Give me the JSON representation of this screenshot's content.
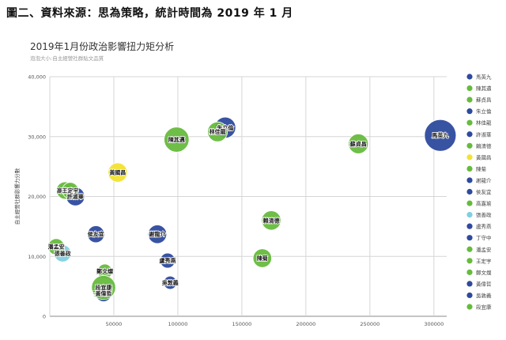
{
  "figure_caption": "圖二、資料來源：思為策略，統計時間為 2019 年 1 月",
  "chart_data": {
    "type": "scatter",
    "title": "2019年1月份政治影響扭力矩分析",
    "subtitle": "泡泡大小:自主經營社群貼文品質",
    "ylabel": "自主經營社群影響力分數",
    "xlabel": "",
    "xlim": [
      0,
      310000
    ],
    "ylim": [
      0,
      40000
    ],
    "x_ticks": [
      "0",
      "50000",
      "100000",
      "150000",
      "200000",
      "250000",
      "300000"
    ],
    "y_ticks": [
      "0",
      "10,000",
      "20,000",
      "30,000",
      "40,000"
    ],
    "grid": true,
    "legend_position": "right",
    "colors": {
      "blue": "#2e4a9e",
      "green": "#66bb3d",
      "yellow": "#f2e333",
      "cyan": "#7fcfe0"
    },
    "points": [
      {
        "name": "馬英九",
        "x": 305000,
        "y": 30200,
        "size": 1.0,
        "color": "blue"
      },
      {
        "name": "陳其邁",
        "x": 99000,
        "y": 29500,
        "size": 0.72,
        "color": "green"
      },
      {
        "name": "蘇貞昌",
        "x": 241000,
        "y": 28800,
        "size": 0.5,
        "color": "green"
      },
      {
        "name": "朱立倫",
        "x": 137000,
        "y": 31500,
        "size": 0.55,
        "color": "blue"
      },
      {
        "name": "林佳龍",
        "x": 131000,
        "y": 30800,
        "size": 0.5,
        "color": "green"
      },
      {
        "name": "許淑華",
        "x": 20000,
        "y": 20000,
        "size": 0.45,
        "color": "blue"
      },
      {
        "name": "賴清德",
        "x": 173000,
        "y": 16000,
        "size": 0.48,
        "color": "green"
      },
      {
        "name": "黃國昌",
        "x": 53000,
        "y": 24000,
        "size": 0.48,
        "color": "yellow"
      },
      {
        "name": "陳菊",
        "x": 166000,
        "y": 9700,
        "size": 0.45,
        "color": "green"
      },
      {
        "name": "謝龍介",
        "x": 84000,
        "y": 13700,
        "size": 0.45,
        "color": "blue"
      },
      {
        "name": "侯友宜",
        "x": 36000,
        "y": 13700,
        "size": 0.38,
        "color": "blue"
      },
      {
        "name": "高嘉瑜",
        "x": 12000,
        "y": 21000,
        "size": 0.4,
        "color": "green"
      },
      {
        "name": "張善政",
        "x": 10000,
        "y": 10500,
        "size": 0.38,
        "color": "cyan"
      },
      {
        "name": "盧秀燕",
        "x": 92000,
        "y": 9300,
        "size": 0.3,
        "color": "blue"
      },
      {
        "name": "丁守中",
        "x": 40000,
        "y": 3800,
        "size": 0.2,
        "color": "blue"
      },
      {
        "name": "潘孟安",
        "x": 5000,
        "y": 11600,
        "size": 0.35,
        "color": "green"
      },
      {
        "name": "王定宇",
        "x": 16000,
        "y": 21000,
        "size": 0.35,
        "color": "green"
      },
      {
        "name": "鄭文燦",
        "x": 43000,
        "y": 7500,
        "size": 0.28,
        "color": "green"
      },
      {
        "name": "黃偉哲",
        "x": 42000,
        "y": 3800,
        "size": 0.35,
        "color": "blue"
      },
      {
        "name": "吳敦義",
        "x": 94000,
        "y": 5600,
        "size": 0.22,
        "color": "blue"
      },
      {
        "name": "段宜康",
        "x": 42000,
        "y": 4800,
        "size": 0.68,
        "color": "green"
      }
    ]
  }
}
